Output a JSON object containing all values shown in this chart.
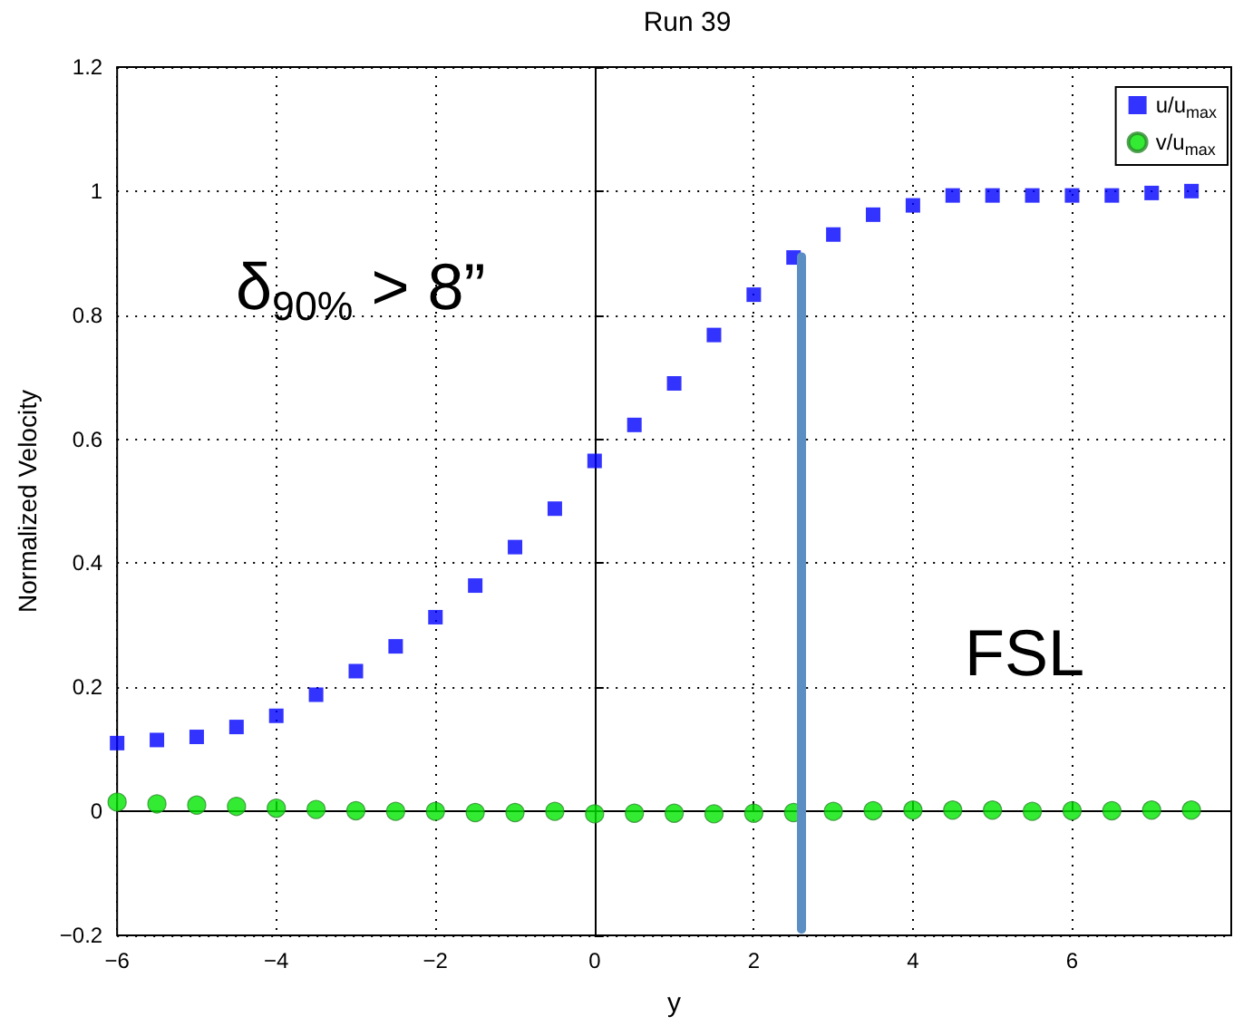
{
  "chart_data": {
    "type": "scatter",
    "title": "Run 39",
    "xlabel": "y",
    "ylabel": "Normalized Velocity",
    "x": [
      -6,
      -5.5,
      -5,
      -4.5,
      -4,
      -3.5,
      -3,
      -2.5,
      -2,
      -1.5,
      -1,
      -0.5,
      0,
      0.5,
      1,
      1.5,
      2,
      2.5,
      3,
      3.5,
      4,
      4.5,
      5,
      5.5,
      6,
      6.5,
      7,
      7.5
    ],
    "series": [
      {
        "name": "u/u$_{max}$",
        "color": "#0000ff",
        "marker": "square",
        "values": [
          0.11,
          0.115,
          0.12,
          0.136,
          0.154,
          0.188,
          0.226,
          0.266,
          0.313,
          0.364,
          0.426,
          0.488,
          0.565,
          0.623,
          0.69,
          0.768,
          0.833,
          0.893,
          0.93,
          0.962,
          0.977,
          0.993,
          0.993,
          0.993,
          0.993,
          0.993,
          0.997,
          1.0
        ]
      },
      {
        "name": "v/u$_{max}$",
        "color": "#00e600",
        "marker": "circle",
        "values": [
          0.015,
          0.012,
          0.01,
          0.008,
          0.005,
          0.003,
          0.001,
          0,
          0,
          -0.002,
          -0.002,
          0,
          -0.004,
          -0.003,
          -0.003,
          -0.004,
          -0.003,
          -0.002,
          0,
          0.001,
          0.002,
          0.002,
          0.002,
          0,
          0.001,
          0.001,
          0.002,
          0.002
        ]
      },
      {
        "type": "line",
        "color": "#5b8fc4",
        "x": [
          2.6,
          2.6
        ],
        "values": [
          0.894,
          -0.19
        ]
      }
    ],
    "xlim": [
      -6,
      8
    ],
    "xticks": [
      -6,
      -4,
      -2,
      0,
      2,
      4,
      6
    ],
    "ylim": [
      -0.2,
      1.2
    ],
    "yticks": [
      -0.2,
      0,
      0.2,
      0.4,
      0.6,
      0.8,
      1,
      1.2
    ],
    "grid": true,
    "legend": "top right",
    "annotations": [
      "δ$_{90%}$ > 8”",
      "FSL"
    ]
  }
}
